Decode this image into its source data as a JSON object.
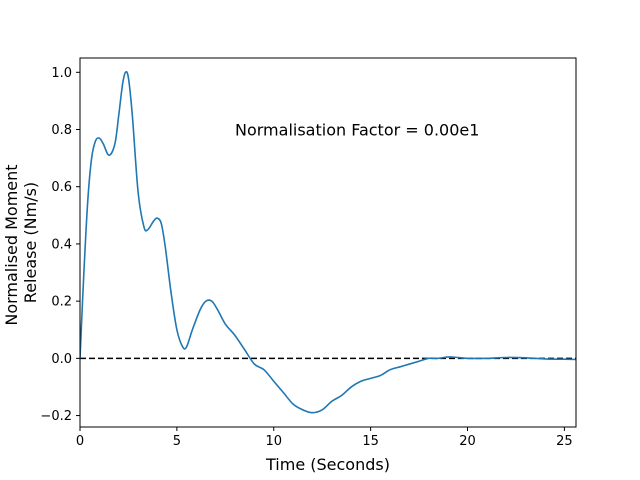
{
  "chart_data": {
    "type": "line",
    "title": "",
    "xlabel": "Time (Seconds)",
    "ylabel_lines": [
      "Normalised Moment",
      "Release (Nm/s)"
    ],
    "xlim": [
      0,
      25.6
    ],
    "ylim": [
      -0.24,
      1.05
    ],
    "xticks": [
      0,
      5,
      10,
      15,
      20,
      25
    ],
    "yticks": [
      -0.2,
      0.0,
      0.2,
      0.4,
      0.6,
      0.8,
      1.0
    ],
    "ytick_labels": [
      "−0.2",
      "0.0",
      "0.2",
      "0.4",
      "0.6",
      "0.8",
      "1.0"
    ],
    "grid": false,
    "annotation": "Normalisation Factor = 0.00e1",
    "reference_line": {
      "y": 0.0,
      "style": "dashed",
      "color": "#000000"
    },
    "series": [
      {
        "color": "#1f77b4",
        "x": [
          0,
          0.2,
          0.4,
          0.6,
          0.8,
          1.0,
          1.2,
          1.5,
          1.8,
          2.0,
          2.2,
          2.35,
          2.5,
          2.7,
          3.0,
          3.3,
          3.5,
          3.8,
          4.0,
          4.2,
          4.4,
          4.7,
          5.0,
          5.3,
          5.5,
          5.8,
          6.2,
          6.5,
          6.8,
          7.1,
          7.5,
          8.0,
          8.5,
          9.0,
          9.5,
          10.0,
          10.5,
          11.0,
          11.5,
          12.0,
          12.5,
          13.0,
          13.5,
          14.0,
          14.5,
          15.0,
          15.5,
          16.0,
          16.5,
          17.0,
          17.5,
          18.0,
          18.5,
          19.0,
          19.5,
          20.0,
          21.0,
          22.0,
          23.0,
          24.0,
          25.0,
          25.6
        ],
        "y": [
          0.0,
          0.3,
          0.55,
          0.7,
          0.76,
          0.77,
          0.75,
          0.71,
          0.75,
          0.85,
          0.96,
          1.0,
          0.98,
          0.85,
          0.58,
          0.46,
          0.45,
          0.48,
          0.49,
          0.47,
          0.39,
          0.23,
          0.1,
          0.04,
          0.04,
          0.1,
          0.17,
          0.2,
          0.2,
          0.17,
          0.12,
          0.08,
          0.03,
          -0.02,
          -0.04,
          -0.08,
          -0.12,
          -0.16,
          -0.18,
          -0.19,
          -0.18,
          -0.15,
          -0.13,
          -0.1,
          -0.08,
          -0.07,
          -0.06,
          -0.04,
          -0.03,
          -0.02,
          -0.01,
          0.0,
          0.0,
          0.005,
          0.003,
          0.0,
          0.0,
          0.003,
          0.002,
          -0.002,
          -0.003,
          -0.004
        ]
      }
    ]
  }
}
